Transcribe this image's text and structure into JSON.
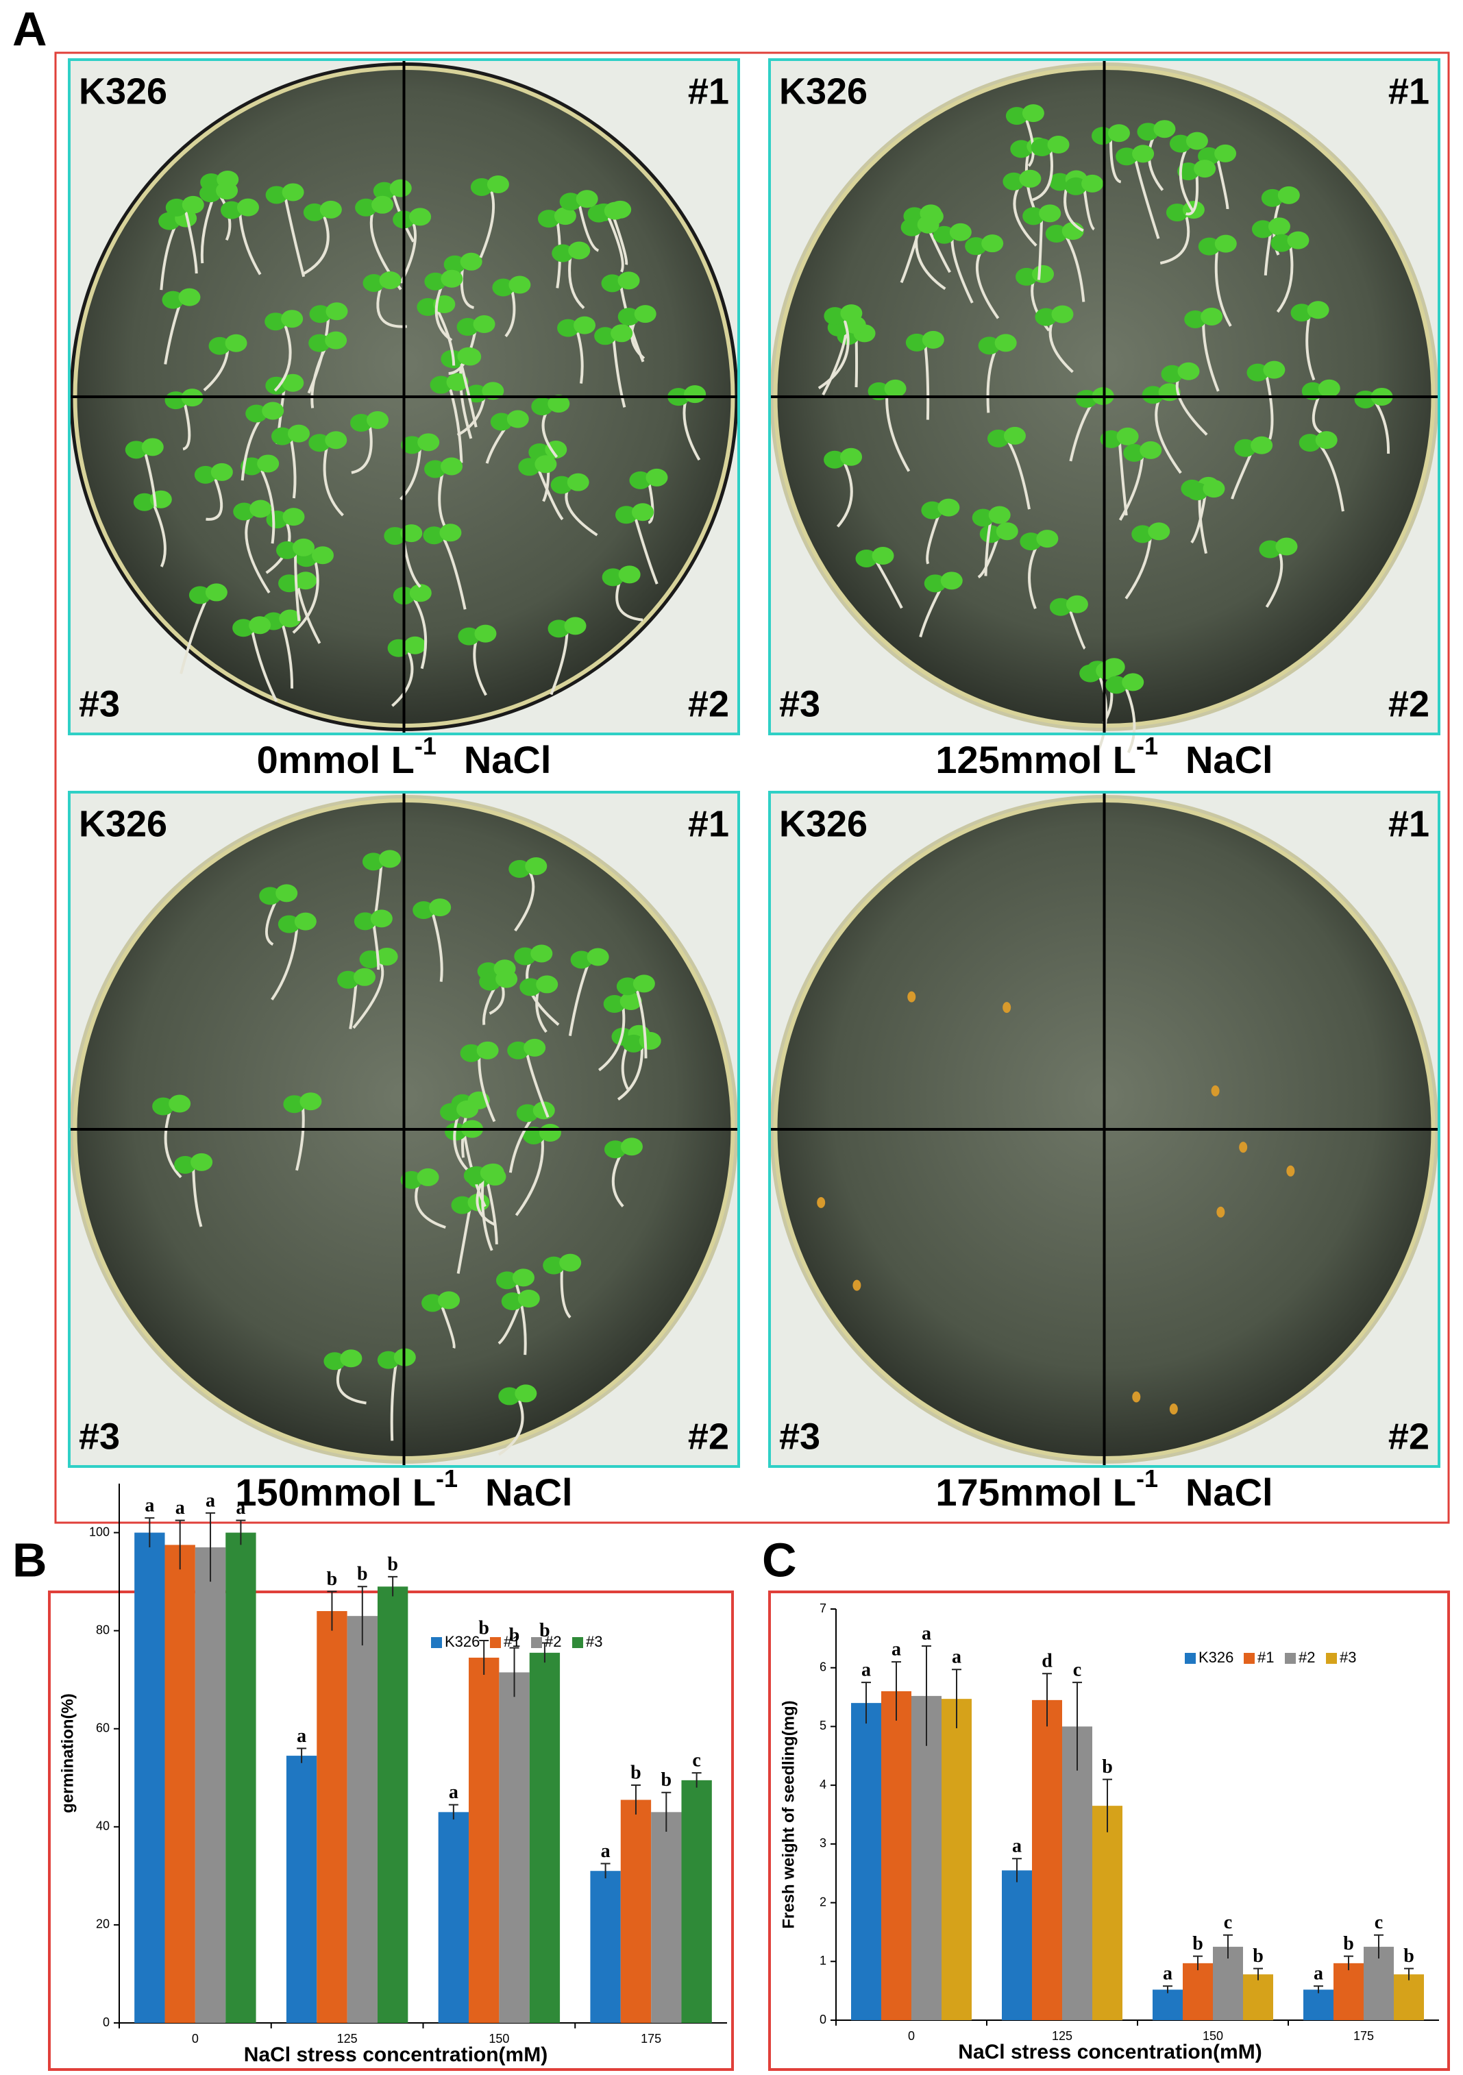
{
  "panel_labels": [
    "A",
    "B",
    "C"
  ],
  "plates": [
    {
      "top_left": "K326",
      "top_right": "#1",
      "bottom_left": "#3",
      "bottom_right": "#2",
      "caption": {
        "amount": "0mmol L",
        "exponent": "-1",
        "salt": "NaCl"
      }
    },
    {
      "top_left": "K326",
      "top_right": "#1",
      "bottom_left": "#3",
      "bottom_right": "#2",
      "caption": {
        "amount": "125mmol L",
        "exponent": "-1",
        "salt": "NaCl"
      }
    },
    {
      "top_left": "K326",
      "top_right": "#1",
      "bottom_left": "#3",
      "bottom_right": "#2",
      "caption": {
        "amount": "150mmol L",
        "exponent": "-1",
        "salt": "NaCl"
      }
    },
    {
      "top_left": "K326",
      "top_right": "#1",
      "bottom_left": "#3",
      "bottom_right": "#2",
      "caption": {
        "amount": "175mmol L",
        "exponent": "-1",
        "salt": "NaCl"
      }
    }
  ],
  "chart_data": [
    {
      "type": "bar",
      "y_label": "germination(%)",
      "x_label": "NaCl stress concentration(mM)",
      "categories": [
        "0",
        "125",
        "150",
        "175"
      ],
      "series": [
        {
          "name": "K326",
          "color": "#1f77c2",
          "values": [
            100,
            54.5,
            43,
            31
          ],
          "errors": [
            3,
            1.5,
            1.5,
            1.5
          ],
          "letters": [
            "a",
            "a",
            "a",
            "a"
          ]
        },
        {
          "name": "#1",
          "color": "#e2621c",
          "values": [
            97.5,
            84,
            74.5,
            45.5
          ],
          "errors": [
            5,
            4,
            3.5,
            3
          ],
          "letters": [
            "a",
            "b",
            "b",
            "b"
          ]
        },
        {
          "name": "#2",
          "color": "#8e8e8e",
          "values": [
            97,
            83,
            71.5,
            43
          ],
          "errors": [
            7,
            6,
            5,
            4
          ],
          "letters": [
            "a",
            "b",
            "b",
            "b"
          ]
        },
        {
          "name": "#3",
          "color": "#2f8a38",
          "values": [
            100,
            89,
            75.5,
            49.5
          ],
          "errors": [
            2.5,
            2,
            2,
            1.5
          ],
          "letters": [
            "a",
            "b",
            "b",
            "c"
          ]
        }
      ],
      "ylim": [
        0,
        110
      ],
      "yticks": [
        0,
        20,
        40,
        60,
        80,
        100
      ],
      "legend": "top-right"
    },
    {
      "type": "bar",
      "y_label": "Fresh weight of seedling(mg)",
      "x_label": "NaCl stress concentration(mM)",
      "categories": [
        "0",
        "125",
        "150",
        "175"
      ],
      "series": [
        {
          "name": "K326",
          "color": "#1f77c2",
          "values": [
            5.4,
            2.55,
            0.52,
            0.52
          ],
          "errors": [
            0.35,
            0.2,
            0.06,
            0.06
          ],
          "letters": [
            "a",
            "a",
            "a",
            "a"
          ]
        },
        {
          "name": "#1",
          "color": "#e2621c",
          "values": [
            5.6,
            5.45,
            0.97,
            0.97
          ],
          "errors": [
            0.5,
            0.45,
            0.12,
            0.12
          ],
          "letters": [
            "a",
            "d",
            "b",
            "b"
          ]
        },
        {
          "name": "#2",
          "color": "#8e8e8e",
          "values": [
            5.52,
            5.0,
            1.25,
            1.25
          ],
          "errors": [
            0.85,
            0.75,
            0.2,
            0.2
          ],
          "letters": [
            "a",
            "c",
            "c",
            "c"
          ]
        },
        {
          "name": "#3",
          "color": "#d6a21a",
          "values": [
            5.47,
            3.65,
            0.78,
            0.78
          ],
          "errors": [
            0.5,
            0.45,
            0.1,
            0.1
          ],
          "letters": [
            "a",
            "b",
            "b",
            "b"
          ]
        }
      ],
      "ylim": [
        0,
        7
      ],
      "yticks": [
        0,
        1,
        2,
        3,
        4,
        5,
        6,
        7
      ],
      "legend": "top-right"
    }
  ]
}
